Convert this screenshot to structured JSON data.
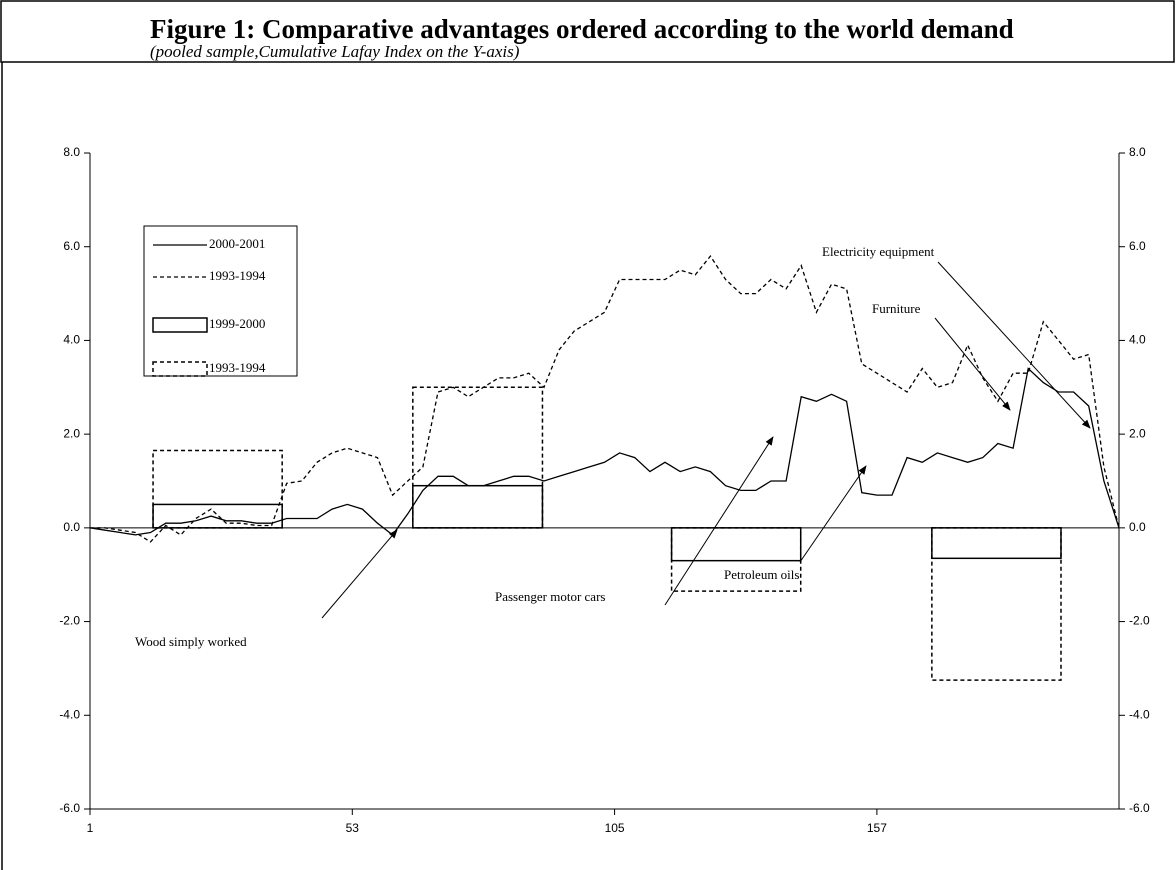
{
  "chart_data": {
    "type": "line",
    "title": "Figure 1: Comparative advantages ordered according to the world demand",
    "subtitle": "(pooled sample,Cumulative Lafay Index on the Y-axis)",
    "x": [
      1,
      4,
      7,
      10,
      13,
      16,
      19,
      22,
      25,
      28,
      31,
      34,
      37,
      40,
      43,
      46,
      49,
      52,
      55,
      58,
      61,
      64,
      67,
      70,
      73,
      76,
      79,
      82,
      85,
      88,
      91,
      94,
      97,
      100,
      103,
      106,
      109,
      112,
      115,
      118,
      121,
      124,
      127,
      130,
      133,
      136,
      139,
      142,
      145,
      148,
      151,
      154,
      157,
      160,
      163,
      166,
      169,
      172,
      175,
      178,
      181,
      184,
      187,
      190,
      193,
      196,
      199,
      202,
      205
    ],
    "series": [
      {
        "name": "2000-2001",
        "color": "#000000",
        "dash": false,
        "values": [
          0,
          -0.05,
          -0.1,
          -0.15,
          -0.1,
          0.1,
          0.1,
          0.15,
          0.25,
          0.15,
          0.15,
          0.1,
          0.1,
          0.2,
          0.2,
          0.2,
          0.4,
          0.5,
          0.4,
          0.1,
          -0.15,
          0.3,
          0.8,
          1.1,
          1.1,
          0.9,
          0.9,
          1.0,
          1.1,
          1.1,
          1.0,
          1.1,
          1.2,
          1.3,
          1.4,
          1.6,
          1.5,
          1.2,
          1.4,
          1.2,
          1.3,
          1.2,
          0.9,
          0.8,
          0.8,
          1.0,
          1.0,
          2.8,
          2.7,
          2.85,
          2.7,
          0.75,
          0.7,
          0.7,
          1.5,
          1.4,
          1.6,
          1.5,
          1.4,
          1.5,
          1.8,
          1.7,
          3.4,
          3.1,
          2.9,
          2.9,
          2.6,
          1.0,
          0
        ]
      },
      {
        "name": "1993-1994",
        "color": "#000000",
        "dash": true,
        "values": [
          0,
          0,
          -0.05,
          -0.1,
          -0.3,
          0.05,
          -0.15,
          0.2,
          0.4,
          0.1,
          0.1,
          0.05,
          0.05,
          0.95,
          1.0,
          1.4,
          1.6,
          1.7,
          1.6,
          1.5,
          0.7,
          1.0,
          1.3,
          2.9,
          3.0,
          2.8,
          3.0,
          3.2,
          3.2,
          3.3,
          3.0,
          3.8,
          4.2,
          4.4,
          4.6,
          5.3,
          5.3,
          5.3,
          5.3,
          5.5,
          5.4,
          5.8,
          5.3,
          5.0,
          5.0,
          5.3,
          5.1,
          5.6,
          4.6,
          5.2,
          5.1,
          3.5,
          3.3,
          3.1,
          2.9,
          3.4,
          3.0,
          3.1,
          3.9,
          3.2,
          2.7,
          3.3,
          3.3,
          4.4,
          4.0,
          3.6,
          3.7,
          1.3,
          0
        ]
      }
    ],
    "boxes": {
      "x_start": [
        13.5,
        65,
        116.3,
        167.9
      ],
      "x_end": [
        39.1,
        90.7,
        141.9,
        193.5
      ],
      "series": [
        {
          "name": "1999-2000",
          "color": "#000000",
          "dash": false,
          "values": [
            0.5,
            0.9,
            -0.7,
            -0.65
          ]
        },
        {
          "name": "1993-1994",
          "color": "#000000",
          "dash": true,
          "values": [
            1.65,
            3.0,
            -1.35,
            -3.25
          ]
        }
      ]
    },
    "xlim": [
      1,
      205
    ],
    "xticks": [
      1,
      53,
      105,
      157
    ],
    "ylim": [
      -6,
      8
    ],
    "yticks": [
      {
        "value": -6,
        "label": "-6.0"
      },
      {
        "value": -4,
        "label": "-4.0"
      },
      {
        "value": -2,
        "label": "-2.0"
      },
      {
        "value": 0,
        "label": "0.0"
      },
      {
        "value": 2,
        "label": "2.0"
      },
      {
        "value": 4,
        "label": "4.0"
      },
      {
        "value": 6,
        "label": "6.0"
      },
      {
        "value": 8,
        "label": "8.0"
      }
    ],
    "y2lim": [
      -6,
      8
    ],
    "y2ticks": [
      {
        "value": -6,
        "label": "-6.0"
      },
      {
        "value": -4,
        "label": "-4.0"
      },
      {
        "value": -2,
        "label": "-2.0"
      },
      {
        "value": 0,
        "label": "0.0"
      },
      {
        "value": 2,
        "label": "2.0"
      },
      {
        "value": 4,
        "label": "4.0"
      },
      {
        "value": 6,
        "label": "6.0"
      },
      {
        "value": 8,
        "label": "8.0"
      }
    ],
    "legend": "upper left",
    "annotations": [
      "Wood simply worked",
      "Passenger motor cars",
      "Petroleum oils",
      "Furniture",
      "Electricity equipment"
    ]
  }
}
